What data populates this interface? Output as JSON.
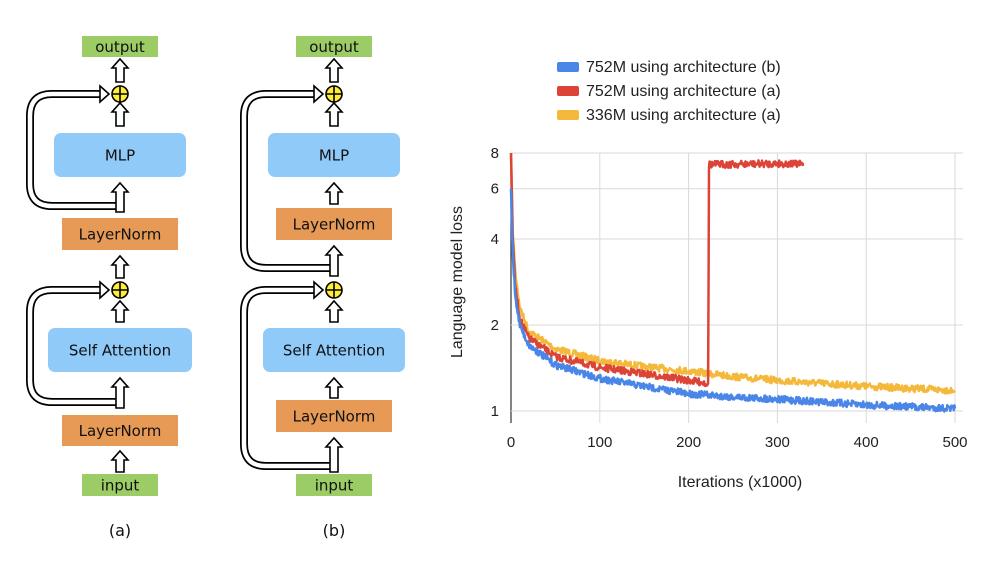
{
  "diagram_a": {
    "caption": "(a)",
    "blocks": [
      "output",
      "MLP",
      "LayerNorm",
      "Self Attention",
      "LayerNorm",
      "input"
    ]
  },
  "diagram_b": {
    "caption": "(b)",
    "blocks": [
      "output",
      "MLP",
      "LayerNorm",
      "Self Attention",
      "LayerNorm",
      "input"
    ]
  },
  "colors": {
    "io": "#9ccc65",
    "layer": "#90caf9",
    "norm": "#e69a55",
    "plus": "#ffee33"
  },
  "chart_data": {
    "type": "line",
    "title": "",
    "xlabel": "Iterations (x1000)",
    "ylabel": "Language model loss",
    "xlim": [
      0,
      500
    ],
    "ylim": [
      1,
      8
    ],
    "yscale": "log",
    "xticks": [
      "0",
      "100",
      "200",
      "300",
      "400",
      "500"
    ],
    "yticks": [
      "1",
      "2",
      "4",
      "6",
      "8"
    ],
    "grid": true,
    "legend_position": "top",
    "series": [
      {
        "name": "752M using architecture (b)",
        "color": "#4a86e8",
        "x": [
          0,
          2,
          5,
          10,
          20,
          50,
          100,
          150,
          200,
          250,
          300,
          400,
          500
        ],
        "y": [
          6,
          3.5,
          2.5,
          2.0,
          1.7,
          1.45,
          1.3,
          1.22,
          1.15,
          1.12,
          1.1,
          1.05,
          1.02
        ]
      },
      {
        "name": "752M using architecture (a)",
        "color": "#db4437",
        "x": [
          0,
          2,
          5,
          10,
          20,
          50,
          100,
          150,
          200,
          222,
          223,
          250,
          300,
          330
        ],
        "y": [
          8,
          4,
          2.7,
          2.1,
          1.8,
          1.55,
          1.42,
          1.35,
          1.28,
          1.25,
          7.3,
          7.3,
          7.35,
          7.3
        ]
      },
      {
        "name": "336M using architecture (a)",
        "color": "#f4b93a",
        "x": [
          0,
          2,
          5,
          10,
          20,
          50,
          100,
          150,
          200,
          250,
          300,
          400,
          500
        ],
        "y": [
          8,
          4.2,
          3.0,
          2.3,
          1.9,
          1.65,
          1.5,
          1.43,
          1.38,
          1.32,
          1.28,
          1.22,
          1.18
        ]
      }
    ]
  }
}
